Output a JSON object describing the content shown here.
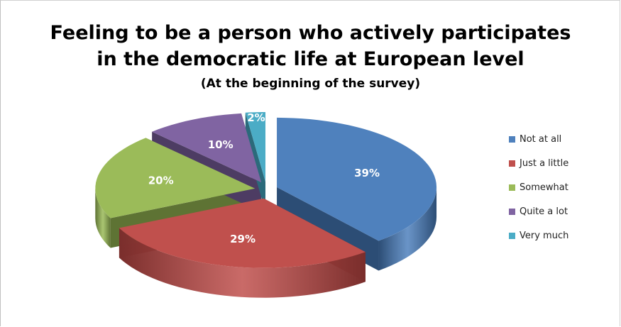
{
  "chart_data": {
    "type": "pie",
    "title_lines": [
      "Feeling to be a person who actively participates",
      "in the democratic life at European level"
    ],
    "subtitle": "(At the beginning of the survey)",
    "slices": [
      {
        "label": "Not at all",
        "value": 39,
        "display": "39%",
        "color": "#4F81BD",
        "side": "#2C4D75"
      },
      {
        "label": "Just a little",
        "value": 29,
        "display": "29%",
        "color": "#C0504D",
        "side": "#7A2E2C"
      },
      {
        "label": "Somewhat",
        "value": 20,
        "display": "20%",
        "color": "#9BBB59",
        "side": "#5E7334"
      },
      {
        "label": "Quite a lot",
        "value": 10,
        "display": "10%",
        "color": "#8064A2",
        "side": "#4D3C63"
      },
      {
        "label": "Very much",
        "value": 2,
        "display": "2%",
        "color": "#4BACC6",
        "side": "#2B6A7B"
      }
    ],
    "legend_position": "right",
    "exploded": true,
    "three_d": true
  }
}
